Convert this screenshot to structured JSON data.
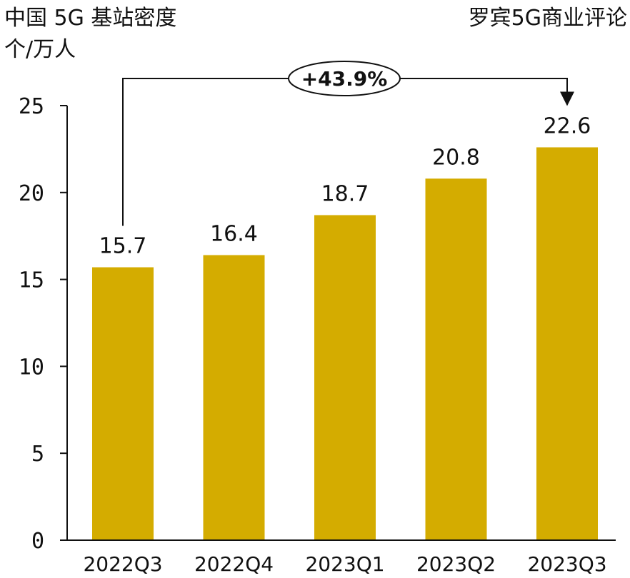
{
  "header": {
    "title": "中国 5G 基站密度",
    "unit": "个/万人",
    "source": "罗宾5G商业评论"
  },
  "colors": {
    "bar": "#D4AC00",
    "axis": "#111111",
    "text": "#111111"
  },
  "chart_data": {
    "type": "bar",
    "title": "中国 5G 基站密度",
    "ylabel": "个/万人",
    "categories": [
      "2022Q3",
      "2022Q4",
      "2023Q1",
      "2023Q2",
      "2023Q3"
    ],
    "values": [
      15.7,
      16.4,
      18.7,
      20.8,
      22.6
    ],
    "value_labels": [
      "15.7",
      "16.4",
      "18.7",
      "20.8",
      "22.6"
    ],
    "ylim": [
      0,
      25
    ],
    "yticks": [
      0,
      5,
      10,
      15,
      20,
      25
    ],
    "grid": false,
    "legend": "none",
    "annotation": {
      "text": "+43.9%",
      "from": "2022Q3",
      "to": "2023Q3"
    }
  }
}
